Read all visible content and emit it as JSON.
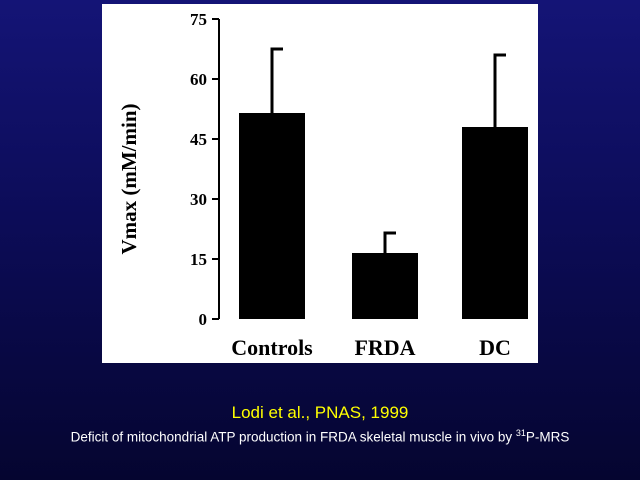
{
  "chart_data": {
    "type": "bar",
    "categories": [
      "Controls",
      "FRDA",
      "DC"
    ],
    "values": [
      51.5,
      16.5,
      48
    ],
    "error_bars": [
      16,
      5,
      18
    ],
    "ylabel": "Vmax (mM/min)",
    "xlabel": "",
    "title": "",
    "ylim": [
      0,
      75
    ],
    "yticks": [
      0,
      15,
      30,
      45,
      60,
      75
    ],
    "grid": false,
    "bar_color": "#000000"
  },
  "citation": "Lodi et al., PNAS, 1999",
  "caption": {
    "before": "Deficit of mitochondrial ATP production in FRDA skeletal muscle in vivo by ",
    "superscript": "31",
    "after": "P-MRS"
  },
  "colors": {
    "background": "#0c0c5e",
    "citation": "#ffff00",
    "caption": "#ffffff",
    "panel": "#ffffff"
  }
}
